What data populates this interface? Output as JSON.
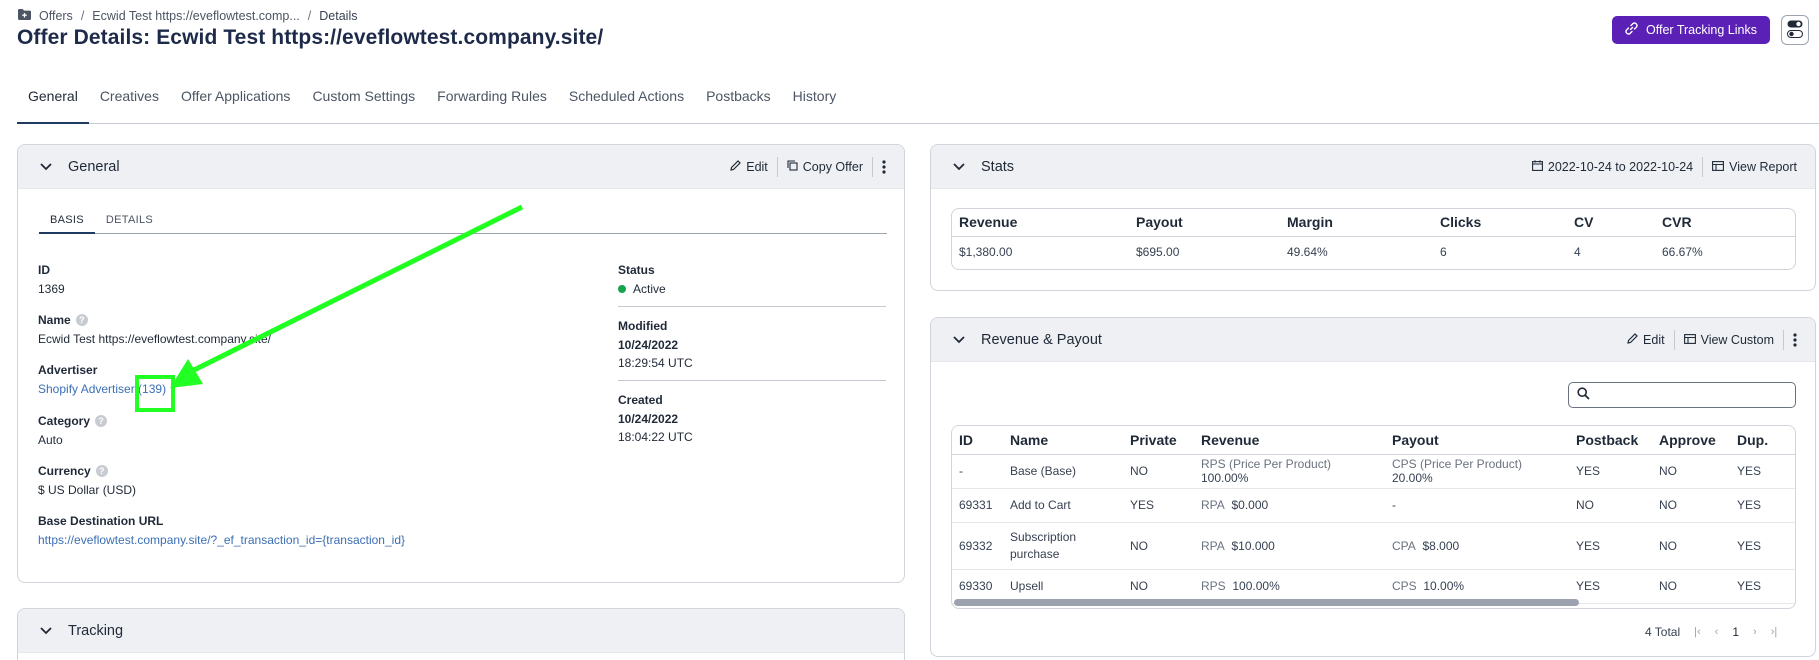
{
  "breadcrumb": {
    "items": [
      "Offers",
      "Ecwid Test https://eveflowtest.comp...",
      "Details"
    ]
  },
  "page_title": "Offer Details: Ecwid Test https://eveflowtest.company.site/",
  "header": {
    "tracking_links_label": "Offer Tracking Links"
  },
  "tabs": [
    "General",
    "Creatives",
    "Offer Applications",
    "Custom Settings",
    "Forwarding Rules",
    "Scheduled Actions",
    "Postbacks",
    "History"
  ],
  "general_panel": {
    "title": "General",
    "edit_label": "Edit",
    "copy_label": "Copy Offer",
    "subtabs": [
      "BASIS",
      "DETAILS"
    ],
    "id_label": "ID",
    "id_value": "1369",
    "name_label": "Name",
    "name_value": "Ecwid Test https://eveflowtest.company.site/",
    "advertiser_label": "Advertiser",
    "advertiser_value": "Shopify Advertiser (139)",
    "category_label": "Category",
    "category_value": "Auto",
    "currency_label": "Currency",
    "currency_value": "$ US Dollar (USD)",
    "url_label": "Base Destination URL",
    "url_value": "https://eveflowtest.company.site/?_ef_transaction_id={transaction_id}",
    "status_label": "Status",
    "status_value": "Active",
    "modified_label": "Modified",
    "modified_date": "10/24/2022",
    "modified_time": "18:29:54 UTC",
    "created_label": "Created",
    "created_date": "10/24/2022",
    "created_time": "18:04:22 UTC"
  },
  "tracking_panel": {
    "title": "Tracking"
  },
  "stats_panel": {
    "title": "Stats",
    "date_range": "2022-10-24 to 2022-10-24",
    "view_report_label": "View Report",
    "headers": [
      "Revenue",
      "Payout",
      "Margin",
      "Clicks",
      "CV",
      "CVR"
    ],
    "values": [
      "$1,380.00",
      "$695.00",
      "49.64%",
      "6",
      "4",
      "66.67%"
    ]
  },
  "revenue_panel": {
    "title": "Revenue & Payout",
    "edit_label": "Edit",
    "view_custom_label": "View Custom",
    "search_placeholder": "",
    "headers": [
      "ID",
      "Name",
      "Private",
      "Revenue",
      "Payout",
      "Postback",
      "Approve",
      "Dup."
    ],
    "rows": [
      {
        "id": "-",
        "name": "Base (Base)",
        "private": "NO",
        "rev_type": "RPS (Price Per Product)",
        "rev_val": "100.00%",
        "pay_type": "CPS (Price Per Product)",
        "pay_val": "20.00%",
        "postback": "YES",
        "approve": "NO",
        "dup": "YES"
      },
      {
        "id": "69331",
        "name": "Add to Cart",
        "private": "YES",
        "rev_type": "RPA",
        "rev_val": "$0.000",
        "pay_type": "-",
        "pay_val": "",
        "postback": "NO",
        "approve": "NO",
        "dup": "YES"
      },
      {
        "id": "69332",
        "name": "Subscription purchase",
        "private": "NO",
        "rev_type": "RPA",
        "rev_val": "$10.000",
        "pay_type": "CPA",
        "pay_val": "$8.000",
        "postback": "YES",
        "approve": "NO",
        "dup": "YES"
      },
      {
        "id": "69330",
        "name": "Upsell",
        "private": "NO",
        "rev_type": "RPS",
        "rev_val": "100.00%",
        "pay_type": "CPS",
        "pay_val": "10.00%",
        "postback": "YES",
        "approve": "NO",
        "dup": "YES"
      }
    ],
    "total_label": "4 Total",
    "current_page": "1"
  },
  "colors": {
    "accent": "#5b21b6",
    "annotation": "#22ff22",
    "yes": "#16a34a",
    "no": "#dc2626",
    "link": "#3b6fb6"
  },
  "icons": [
    "folder-icon",
    "link-icon",
    "toggle-icon",
    "chevron-down-icon",
    "pencil-icon",
    "copy-icon",
    "kebab-icon",
    "calendar-icon",
    "report-icon",
    "search-icon",
    "help-icon"
  ]
}
